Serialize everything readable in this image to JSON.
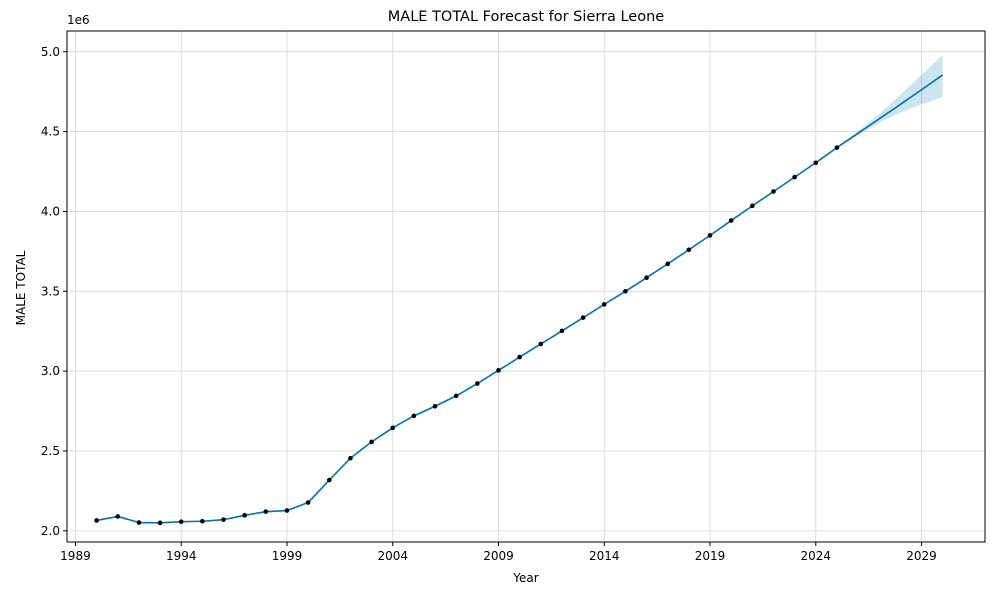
{
  "chart_data": {
    "type": "line",
    "title": "MALE TOTAL Forecast for Sierra Leone",
    "xlabel": "Year",
    "ylabel": "MALE TOTAL",
    "y_offset_label": "1e6",
    "grid": true,
    "xlim": [
      1988.6,
      2032.0
    ],
    "ylim": [
      1.93,
      5.13
    ],
    "x_ticks": [
      1989,
      1994,
      1999,
      2004,
      2009,
      2014,
      2019,
      2024,
      2029
    ],
    "x_tick_labels": [
      "1989",
      "1994",
      "1999",
      "2004",
      "2009",
      "2014",
      "2019",
      "2024",
      "2029"
    ],
    "y_ticks": [
      2.0,
      2.5,
      3.0,
      3.5,
      4.0,
      4.5,
      5.0
    ],
    "y_tick_labels": [
      "2.0",
      "2.5",
      "3.0",
      "3.5",
      "4.0",
      "4.5",
      "5.0"
    ],
    "colors": {
      "forecast_line": "#0072B2",
      "interval_fill": "#0072B2",
      "observed_points": "#000000",
      "grid": "#d9d9d9",
      "axes": "#000000"
    },
    "series": [
      {
        "kind": "observed",
        "x": [
          1990,
          1991,
          1992,
          1993,
          1994,
          1995,
          1996,
          1997,
          1998,
          1999,
          2000,
          2001,
          2002,
          2003,
          2004,
          2005,
          2006,
          2007,
          2008,
          2009,
          2010,
          2011,
          2012,
          2013,
          2014,
          2015,
          2016,
          2017,
          2018,
          2019,
          2020,
          2021,
          2022,
          2023,
          2024,
          2025
        ],
        "y": [
          2.065,
          2.09,
          2.052,
          2.05,
          2.057,
          2.06,
          2.07,
          2.097,
          2.12,
          2.127,
          2.177,
          2.318,
          2.455,
          2.557,
          2.645,
          2.72,
          2.78,
          2.845,
          2.922,
          3.005,
          3.088,
          3.17,
          3.252,
          3.335,
          3.418,
          3.5,
          3.585,
          3.672,
          3.76,
          3.85,
          3.943,
          4.035,
          4.125,
          4.215,
          4.305,
          4.4
        ]
      },
      {
        "kind": "forecast",
        "x": [
          1990,
          1991,
          1992,
          1993,
          1994,
          1995,
          1996,
          1997,
          1998,
          1999,
          2000,
          2001,
          2002,
          2003,
          2004,
          2005,
          2006,
          2007,
          2008,
          2009,
          2010,
          2011,
          2012,
          2013,
          2014,
          2015,
          2016,
          2017,
          2018,
          2019,
          2020,
          2021,
          2022,
          2023,
          2024,
          2025,
          2026,
          2027,
          2028,
          2029,
          2030
        ],
        "y": [
          2.065,
          2.09,
          2.052,
          2.05,
          2.057,
          2.06,
          2.07,
          2.097,
          2.12,
          2.127,
          2.177,
          2.318,
          2.455,
          2.557,
          2.645,
          2.72,
          2.78,
          2.845,
          2.922,
          3.005,
          3.088,
          3.17,
          3.252,
          3.335,
          3.418,
          3.5,
          3.585,
          3.672,
          3.76,
          3.85,
          3.943,
          4.035,
          4.125,
          4.215,
          4.305,
          4.4,
          4.49,
          4.58,
          4.67,
          4.762,
          4.855
        ],
        "lower": [
          2.065,
          2.09,
          2.052,
          2.05,
          2.057,
          2.06,
          2.07,
          2.097,
          2.12,
          2.127,
          2.177,
          2.318,
          2.455,
          2.557,
          2.645,
          2.72,
          2.78,
          2.845,
          2.922,
          3.005,
          3.088,
          3.17,
          3.252,
          3.335,
          3.418,
          3.5,
          3.585,
          3.672,
          3.76,
          3.85,
          3.943,
          4.035,
          4.125,
          4.215,
          4.305,
          4.4,
          4.478,
          4.555,
          4.62,
          4.672,
          4.715
        ],
        "upper": [
          2.065,
          2.09,
          2.052,
          2.05,
          2.057,
          2.06,
          2.07,
          2.097,
          2.12,
          2.127,
          2.177,
          2.318,
          2.455,
          2.557,
          2.645,
          2.72,
          2.78,
          2.845,
          2.922,
          3.005,
          3.088,
          3.17,
          3.252,
          3.335,
          3.418,
          3.5,
          3.585,
          3.672,
          3.76,
          3.85,
          3.943,
          4.035,
          4.125,
          4.215,
          4.305,
          4.4,
          4.502,
          4.61,
          4.73,
          4.855,
          4.98
        ]
      }
    ]
  }
}
